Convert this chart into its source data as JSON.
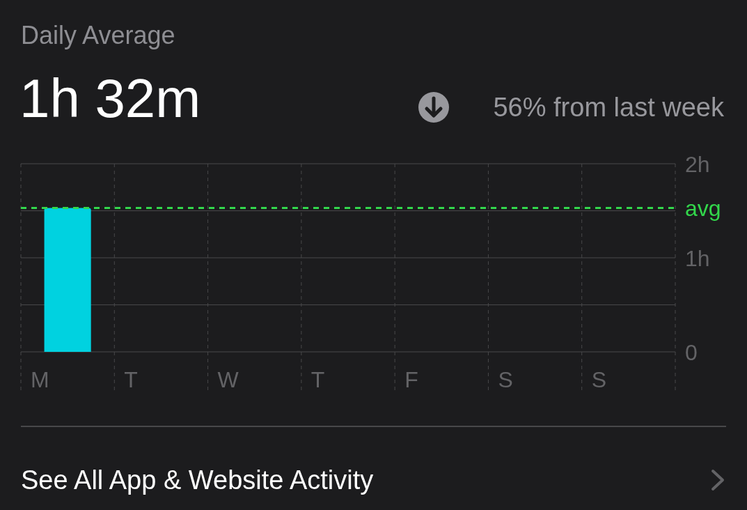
{
  "chart_data": {
    "type": "bar",
    "title": "Daily Average",
    "subtitle": "1h 32m",
    "annotations": [
      "56% from last week",
      "See All App & Website Activity"
    ],
    "categories": [
      "M",
      "T",
      "W",
      "T",
      "F",
      "S",
      "S"
    ],
    "values": [
      1.53,
      null,
      null,
      null,
      null,
      null,
      null
    ],
    "color": "#00d2e0",
    "ylim": [
      0,
      2
    ],
    "yticks": [
      0,
      {
        "value": 0.5,
        "label": null
      },
      {
        "value": 1,
        "label": "1h"
      },
      {
        "value": 1.5,
        "label": null
      },
      {
        "value": 2,
        "label": "2h"
      }
    ],
    "grid": true,
    "ref_lines": [
      {
        "axis": "y",
        "value": 1.53,
        "label": "avg",
        "color": "#32d74b",
        "line_style": "dashed"
      }
    ]
  }
}
